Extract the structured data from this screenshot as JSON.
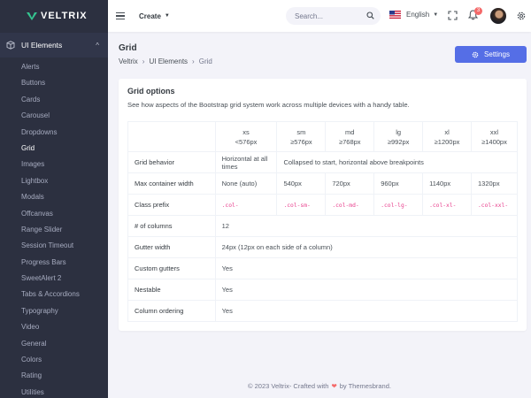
{
  "brand": {
    "name": "VELTRIX",
    "accent": "#34c38f"
  },
  "sidebar": {
    "section": {
      "label": "UI Elements",
      "icon": "box-icon",
      "chevron": "^"
    },
    "items": [
      {
        "label": "Alerts"
      },
      {
        "label": "Buttons"
      },
      {
        "label": "Cards"
      },
      {
        "label": "Carousel"
      },
      {
        "label": "Dropdowns"
      },
      {
        "label": "Grid",
        "active": true
      },
      {
        "label": "Images"
      },
      {
        "label": "Lightbox"
      },
      {
        "label": "Modals"
      },
      {
        "label": "Offcanvas"
      },
      {
        "label": "Range Slider"
      },
      {
        "label": "Session Timeout"
      },
      {
        "label": "Progress Bars"
      },
      {
        "label": "SweetAlert 2"
      },
      {
        "label": "Tabs & Accordions"
      },
      {
        "label": "Typography"
      },
      {
        "label": "Video"
      },
      {
        "label": "General"
      },
      {
        "label": "Colors"
      },
      {
        "label": "Rating"
      },
      {
        "label": "Utilities"
      }
    ]
  },
  "topbar": {
    "create_label": "Create",
    "search_placeholder": "Search...",
    "language": "English",
    "notification_count": "3"
  },
  "page": {
    "title": "Grid",
    "breadcrumb": [
      "Veltrix",
      "UI Elements",
      "Grid"
    ],
    "settings_label": "Settings"
  },
  "card": {
    "title": "Grid options",
    "description": "See how aspects of the Bootstrap grid system work across multiple devices with a handy table.",
    "columns": [
      {
        "name": "xs",
        "range": "<576px"
      },
      {
        "name": "sm",
        "range": "≥576px"
      },
      {
        "name": "md",
        "range": "≥768px"
      },
      {
        "name": "lg",
        "range": "≥992px"
      },
      {
        "name": "xl",
        "range": "≥1200px"
      },
      {
        "name": "xxl",
        "range": "≥1400px"
      }
    ],
    "rows": {
      "grid_behavior": {
        "label": "Grid behavior",
        "xs": "Horizontal at all times",
        "rest": "Collapsed to start, horizontal above breakpoints"
      },
      "max_width": {
        "label": "Max container width",
        "values": [
          "None (auto)",
          "540px",
          "720px",
          "960px",
          "1140px",
          "1320px"
        ]
      },
      "class_prefix": {
        "label": "Class prefix",
        "values": [
          ".col-",
          ".col-sm-",
          ".col-md-",
          ".col-lg-",
          ".col-xl-",
          ".col-xxl-"
        ]
      },
      "columns": {
        "label": "# of columns",
        "value": "12"
      },
      "gutter": {
        "label": "Gutter width",
        "value": "24px (12px on each side of a column)"
      },
      "custom_gutters": {
        "label": "Custom gutters",
        "value": "Yes"
      },
      "nestable": {
        "label": "Nestable",
        "value": "Yes"
      },
      "ordering": {
        "label": "Column ordering",
        "value": "Yes"
      }
    }
  },
  "footer": {
    "prefix": "© 2023 Veltrix- Crafted with",
    "heart": "❤",
    "suffix": "by Themesbrand."
  }
}
